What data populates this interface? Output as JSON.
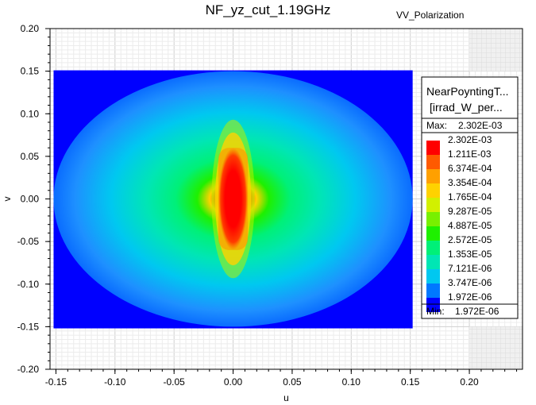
{
  "chart_data": {
    "type": "heatmap",
    "title": "NF_yz_cut_1.19GHz",
    "subtitle": "VV_Polarization",
    "xlabel": "u",
    "ylabel": "v",
    "xlim": [
      -0.155,
      0.245
    ],
    "ylim": [
      -0.2,
      0.2
    ],
    "xticks": [
      "-0.15",
      "-0.10",
      "-0.05",
      "0.00",
      "0.05",
      "0.10",
      "0.15",
      "0.20"
    ],
    "xtick_values": [
      -0.15,
      -0.1,
      -0.05,
      0.0,
      0.05,
      0.1,
      0.15,
      0.2
    ],
    "yticks": [
      "0.20",
      "0.15",
      "0.10",
      "0.05",
      "0.00",
      "-0.05",
      "-0.10",
      "-0.15",
      "-0.20"
    ],
    "ytick_values": [
      0.2,
      0.15,
      0.1,
      0.05,
      0.0,
      -0.05,
      -0.1,
      -0.15,
      -0.2
    ],
    "grid": true,
    "data_extent": {
      "u": [
        -0.152,
        0.152
      ],
      "v": [
        -0.152,
        0.151
      ]
    },
    "field_region": {
      "shape": "ellipse",
      "center": [
        0.0,
        0.0
      ],
      "semi_axis_u": 0.152,
      "semi_axis_v": 0.15
    },
    "legend": {
      "title_lines": [
        "NearPoyntingT...",
        "[irrad_W_per..."
      ],
      "max_label": "Max:",
      "max_value": "2.302E-03",
      "min_label": "Min:",
      "min_value": "1.972E-06",
      "placement": "right",
      "levels": [
        {
          "label": "2.302E-03",
          "color": "#ff0000"
        },
        {
          "label": "1.211E-03",
          "color": "#ff5a00"
        },
        {
          "label": "6.374E-04",
          "color": "#ffa000"
        },
        {
          "label": "3.354E-04",
          "color": "#ffd200"
        },
        {
          "label": "1.765E-04",
          "color": "#d2f000"
        },
        {
          "label": "9.287E-05",
          "color": "#78f000"
        },
        {
          "label": "4.887E-05",
          "color": "#1ef000"
        },
        {
          "label": "2.572E-05",
          "color": "#00f078"
        },
        {
          "label": "1.353E-05",
          "color": "#00e6b4"
        },
        {
          "label": "7.121E-06",
          "color": "#00c8f0"
        },
        {
          "label": "3.747E-06",
          "color": "#0078ff"
        },
        {
          "label": "1.972E-06",
          "color": "#0000ff"
        }
      ]
    }
  }
}
